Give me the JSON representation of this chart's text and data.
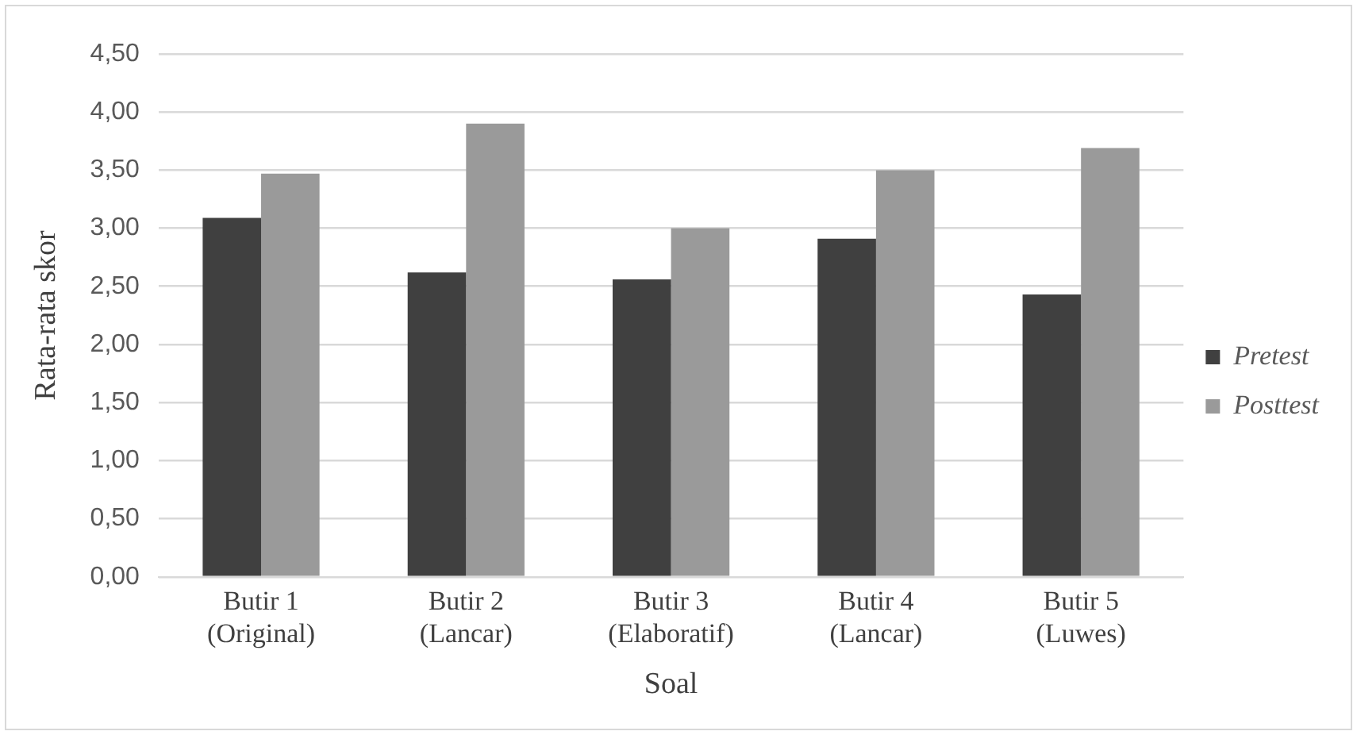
{
  "chart_data": {
    "type": "bar",
    "xlabel": "Soal",
    "ylabel": "Rata-rata skor",
    "categories": [
      "Butir 1\n(Original)",
      "Butir 2\n(Lancar)",
      "Butir 3\n(Elaboratif)",
      "Butir 4\n(Lancar)",
      "Butir 5\n(Luwes)"
    ],
    "series": [
      {
        "name": "Pretest",
        "color": "#404040",
        "values": [
          3.09,
          2.62,
          2.56,
          2.91,
          2.43
        ]
      },
      {
        "name": "Posttest",
        "color": "#9a9a9a",
        "values": [
          3.47,
          3.9,
          3.0,
          3.5,
          3.69
        ]
      }
    ],
    "ylim": [
      0,
      4.5
    ],
    "yticks": [
      {
        "value": 0,
        "label": "0,00"
      },
      {
        "value": 0.5,
        "label": "0,50"
      },
      {
        "value": 1,
        "label": "1,00"
      },
      {
        "value": 1.5,
        "label": "1,50"
      },
      {
        "value": 2,
        "label": "2,00"
      },
      {
        "value": 2.5,
        "label": "2,50"
      },
      {
        "value": 3,
        "label": "3,00"
      },
      {
        "value": 3.5,
        "label": "3,50"
      },
      {
        "value": 4,
        "label": "4,00"
      },
      {
        "value": 4.5,
        "label": "4,50"
      }
    ],
    "grid": "y",
    "legend": "right"
  }
}
